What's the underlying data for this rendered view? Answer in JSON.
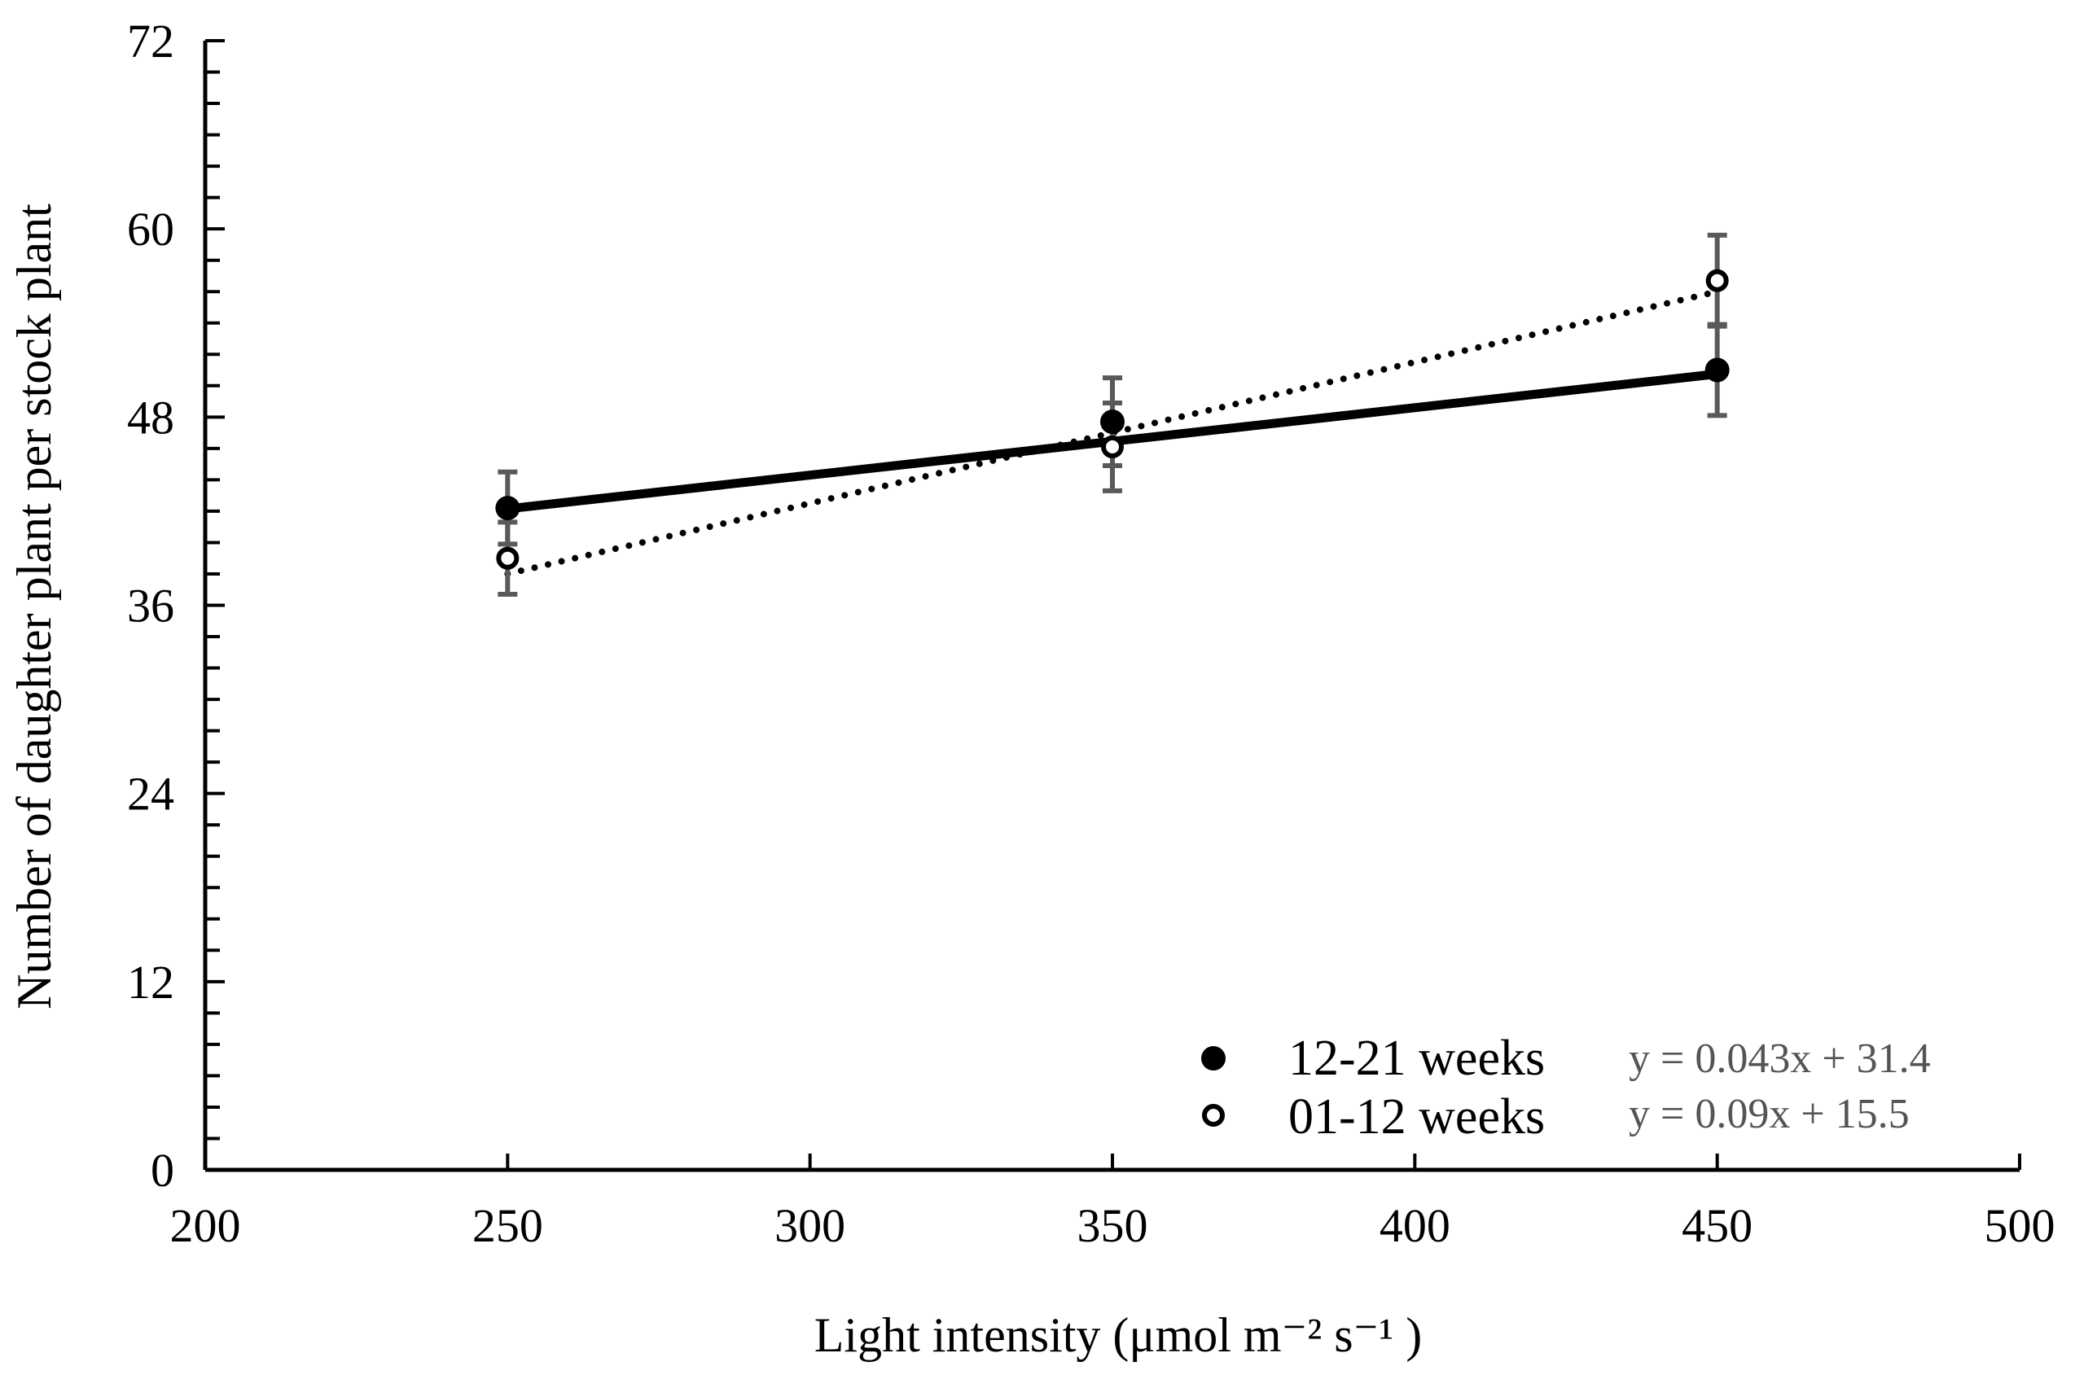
{
  "chart_data": {
    "type": "scatter",
    "xlabel": "Light intensity (μmol m⁻² s⁻¹ )",
    "ylabel": "Number of daughter plant per stock plant",
    "xlim": [
      200,
      500
    ],
    "ylim": [
      0,
      72
    ],
    "x_ticks": [
      200,
      250,
      300,
      350,
      400,
      450,
      500
    ],
    "y_ticks": [
      0,
      12,
      24,
      36,
      48,
      60,
      72
    ],
    "grid": false,
    "legend_position": "bottom-right",
    "series": [
      {
        "name": "12-21 weeks",
        "marker": "filled-circle",
        "x": [
          250,
          350,
          450
        ],
        "y": [
          42.2,
          47.7,
          51.0
        ],
        "error": [
          2.3,
          2.8,
          2.9
        ],
        "trendline": {
          "style": "solid",
          "slope": 0.043,
          "intercept": 31.4,
          "equation": "y = 0.043x + 31.4"
        }
      },
      {
        "name": "01-12 weeks",
        "marker": "open-circle",
        "x": [
          250,
          350,
          450
        ],
        "y": [
          39.0,
          46.1,
          56.7
        ],
        "error": [
          2.3,
          2.8,
          2.9
        ],
        "trendline": {
          "style": "dotted",
          "slope": 0.09,
          "intercept": 15.5,
          "equation": "y = 0.09x + 15.5"
        }
      }
    ],
    "colors": {
      "axis": "#000000",
      "line": "#000000",
      "error_bar": "#595959",
      "equation": "#555555"
    }
  }
}
